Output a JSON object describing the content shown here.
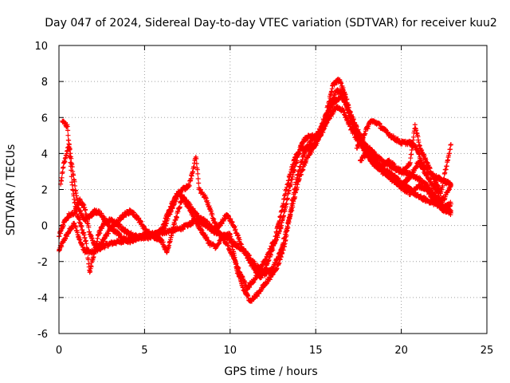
{
  "chart_data": {
    "type": "scatter",
    "title": "Day 047 of 2024, Sidereal Day-to-day VTEC variation (SDTVAR) for receiver kuu2",
    "xlabel": "GPS time / hours",
    "ylabel": "SDTVAR / TECUs",
    "xlim": [
      0,
      25
    ],
    "ylim": [
      -6,
      10
    ],
    "xticks": [
      0,
      5,
      10,
      15,
      20,
      25
    ],
    "yticks": [
      -6,
      -4,
      -2,
      0,
      2,
      4,
      6,
      8,
      10
    ],
    "grid": true,
    "marker": "+",
    "color": "#ff0000",
    "series": [
      {
        "name": "trace-1",
        "points": [
          [
            0.0,
            -1.4
          ],
          [
            0.3,
            -0.8
          ],
          [
            0.6,
            -0.3
          ],
          [
            0.9,
            0.1
          ],
          [
            1.1,
            -0.5
          ],
          [
            1.3,
            -1.0
          ],
          [
            1.5,
            -1.4
          ],
          [
            2.0,
            -1.5
          ],
          [
            2.5,
            -1.2
          ],
          [
            3.0,
            -1.0
          ],
          [
            3.5,
            -0.9
          ],
          [
            4.0,
            -0.8
          ],
          [
            4.5,
            -0.7
          ],
          [
            5.0,
            -0.6
          ],
          [
            5.5,
            -0.5
          ],
          [
            6.0,
            -0.4
          ],
          [
            6.5,
            -0.3
          ],
          [
            7.0,
            -0.2
          ],
          [
            7.5,
            0.0
          ],
          [
            8.0,
            0.3
          ],
          [
            8.5,
            0.1
          ],
          [
            9.0,
            -0.3
          ],
          [
            9.5,
            -0.5
          ],
          [
            10.0,
            -0.8
          ],
          [
            10.5,
            -1.2
          ],
          [
            11.0,
            -1.6
          ],
          [
            11.5,
            -2.2
          ],
          [
            12.0,
            -2.7
          ],
          [
            12.5,
            -2.4
          ],
          [
            13.0,
            -1.3
          ],
          [
            13.5,
            0.5
          ],
          [
            14.0,
            2.5
          ],
          [
            14.5,
            3.8
          ],
          [
            15.0,
            4.5
          ],
          [
            15.5,
            5.5
          ],
          [
            16.0,
            6.8
          ],
          [
            16.5,
            7.2
          ],
          [
            17.0,
            6.3
          ],
          [
            17.5,
            5.2
          ],
          [
            18.0,
            4.2
          ],
          [
            18.5,
            3.6
          ],
          [
            19.0,
            3.1
          ],
          [
            19.5,
            2.8
          ],
          [
            20.0,
            2.4
          ],
          [
            20.5,
            2.0
          ],
          [
            21.0,
            1.6
          ],
          [
            21.5,
            1.4
          ],
          [
            22.0,
            1.2
          ],
          [
            22.5,
            1.0
          ],
          [
            22.9,
            0.8
          ]
        ]
      },
      {
        "name": "trace-2",
        "points": [
          [
            0.2,
            5.8
          ],
          [
            0.5,
            5.5
          ],
          [
            0.6,
            4.2
          ],
          [
            0.8,
            2.0
          ],
          [
            1.0,
            0.8
          ],
          [
            1.3,
            0.0
          ],
          [
            1.6,
            -1.0
          ],
          [
            1.8,
            -2.6
          ],
          [
            2.0,
            -1.8
          ],
          [
            2.3,
            -0.5
          ],
          [
            2.6,
            0.1
          ],
          [
            3.0,
            0.3
          ],
          [
            3.5,
            0.0
          ],
          [
            4.0,
            -0.4
          ],
          [
            4.5,
            -0.6
          ],
          [
            5.0,
            -0.7
          ],
          [
            5.5,
            -0.6
          ],
          [
            6.0,
            -0.8
          ],
          [
            6.3,
            -1.5
          ],
          [
            6.8,
            0.3
          ],
          [
            7.2,
            1.5
          ],
          [
            7.6,
            1.0
          ],
          [
            8.0,
            0.2
          ],
          [
            8.4,
            -0.4
          ],
          [
            8.8,
            -1.0
          ],
          [
            9.2,
            -1.2
          ],
          [
            9.6,
            -0.6
          ],
          [
            10.0,
            -0.5
          ],
          [
            10.4,
            -2.5
          ],
          [
            10.8,
            -3.6
          ],
          [
            11.2,
            -4.2
          ],
          [
            11.6,
            -3.8
          ],
          [
            12.0,
            -3.3
          ],
          [
            12.4,
            -2.8
          ],
          [
            12.8,
            -2.2
          ],
          [
            13.2,
            -1.0
          ],
          [
            13.6,
            1.2
          ],
          [
            14.0,
            3.0
          ],
          [
            14.4,
            4.2
          ],
          [
            14.8,
            4.8
          ],
          [
            15.2,
            5.2
          ],
          [
            15.6,
            6.2
          ],
          [
            16.0,
            7.8
          ],
          [
            16.4,
            8.1
          ],
          [
            16.8,
            7.0
          ],
          [
            17.2,
            5.6
          ],
          [
            17.6,
            4.6
          ],
          [
            18.0,
            3.9
          ],
          [
            18.5,
            3.3
          ],
          [
            19.0,
            2.9
          ],
          [
            19.5,
            2.6
          ],
          [
            20.0,
            2.1
          ],
          [
            20.5,
            1.8
          ],
          [
            21.0,
            2.2
          ],
          [
            21.5,
            2.0
          ],
          [
            22.0,
            1.3
          ],
          [
            22.5,
            1.5
          ],
          [
            22.9,
            2.2
          ]
        ]
      },
      {
        "name": "trace-3",
        "points": [
          [
            0.0,
            -0.6
          ],
          [
            0.3,
            0.2
          ],
          [
            0.6,
            0.6
          ],
          [
            0.9,
            0.7
          ],
          [
            1.2,
            1.4
          ],
          [
            1.5,
            1.0
          ],
          [
            1.8,
            -0.5
          ],
          [
            2.2,
            -1.3
          ],
          [
            2.6,
            -0.8
          ],
          [
            3.0,
            -0.2
          ],
          [
            3.4,
            0.2
          ],
          [
            3.8,
            0.6
          ],
          [
            4.2,
            0.8
          ],
          [
            4.6,
            0.4
          ],
          [
            5.0,
            -0.2
          ],
          [
            5.4,
            -0.6
          ],
          [
            5.8,
            -0.4
          ],
          [
            6.2,
            0.0
          ],
          [
            6.6,
            1.0
          ],
          [
            7.0,
            1.8
          ],
          [
            7.4,
            1.4
          ],
          [
            7.8,
            0.9
          ],
          [
            8.2,
            0.4
          ],
          [
            8.6,
            0.2
          ],
          [
            9.0,
            -0.2
          ],
          [
            9.4,
            0.0
          ],
          [
            9.8,
            0.6
          ],
          [
            10.2,
            0.0
          ],
          [
            10.6,
            -1.0
          ],
          [
            11.0,
            -1.8
          ],
          [
            11.4,
            -2.4
          ],
          [
            11.8,
            -2.9
          ],
          [
            12.2,
            -2.0
          ],
          [
            12.6,
            -1.0
          ],
          [
            13.0,
            0.0
          ],
          [
            13.4,
            1.8
          ],
          [
            13.8,
            3.3
          ],
          [
            14.2,
            4.6
          ],
          [
            14.6,
            5.0
          ],
          [
            15.0,
            4.9
          ],
          [
            15.4,
            5.3
          ],
          [
            15.8,
            6.0
          ],
          [
            16.2,
            6.6
          ],
          [
            16.6,
            6.4
          ],
          [
            17.0,
            5.5
          ],
          [
            17.4,
            4.8
          ],
          [
            17.8,
            4.5
          ],
          [
            18.2,
            4.2
          ],
          [
            18.6,
            3.8
          ],
          [
            19.0,
            3.5
          ],
          [
            19.5,
            3.2
          ],
          [
            20.0,
            3.0
          ],
          [
            20.5,
            2.9
          ],
          [
            21.0,
            2.6
          ],
          [
            21.5,
            2.2
          ],
          [
            22.0,
            1.6
          ],
          [
            22.4,
            0.9
          ],
          [
            22.9,
            0.7
          ]
        ]
      },
      {
        "name": "trace-4",
        "points": [
          [
            0.1,
            2.3
          ],
          [
            0.3,
            3.5
          ],
          [
            0.6,
            4.5
          ],
          [
            0.8,
            3.0
          ],
          [
            1.0,
            1.8
          ],
          [
            1.2,
            0.8
          ],
          [
            1.5,
            0.3
          ],
          [
            1.8,
            0.5
          ],
          [
            2.1,
            0.8
          ],
          [
            2.4,
            0.7
          ],
          [
            2.7,
            0.3
          ],
          [
            3.1,
            -0.2
          ],
          [
            3.5,
            -0.5
          ],
          [
            4.0,
            -0.9
          ],
          [
            4.4,
            -0.8
          ],
          [
            4.8,
            -0.6
          ],
          [
            5.2,
            -0.4
          ],
          [
            5.6,
            -0.5
          ],
          [
            6.0,
            -0.3
          ],
          [
            6.4,
            0.8
          ],
          [
            6.8,
            1.6
          ],
          [
            7.2,
            2.0
          ],
          [
            7.6,
            2.2
          ],
          [
            8.0,
            3.8
          ],
          [
            8.2,
            2.0
          ],
          [
            8.6,
            1.5
          ],
          [
            9.0,
            0.4
          ],
          [
            9.4,
            -0.5
          ],
          [
            9.8,
            -1.0
          ],
          [
            10.2,
            -1.8
          ],
          [
            10.6,
            -2.7
          ],
          [
            11.0,
            -3.5
          ],
          [
            11.4,
            -3.0
          ],
          [
            11.8,
            -2.4
          ],
          [
            12.2,
            -1.6
          ],
          [
            12.6,
            -0.8
          ],
          [
            13.0,
            0.8
          ],
          [
            13.4,
            2.5
          ],
          [
            13.8,
            3.8
          ],
          [
            14.2,
            4.3
          ],
          [
            14.6,
            4.2
          ],
          [
            15.0,
            4.6
          ],
          [
            15.4,
            5.2
          ],
          [
            15.8,
            6.6
          ],
          [
            16.2,
            7.5
          ],
          [
            16.6,
            7.3
          ],
          [
            17.0,
            6.0
          ],
          [
            17.4,
            5.0
          ],
          [
            17.8,
            4.6
          ],
          [
            18.2,
            4.0
          ],
          [
            18.6,
            3.4
          ],
          [
            19.0,
            3.0
          ],
          [
            19.5,
            2.5
          ],
          [
            20.0,
            2.2
          ],
          [
            20.5,
            2.7
          ],
          [
            21.0,
            3.5
          ],
          [
            21.5,
            2.8
          ],
          [
            22.0,
            2.0
          ],
          [
            22.5,
            1.0
          ],
          [
            22.9,
            1.2
          ]
        ]
      },
      {
        "name": "trace-5",
        "points": [
          [
            17.4,
            4.3
          ],
          [
            17.8,
            5.0
          ],
          [
            18.2,
            5.8
          ],
          [
            18.6,
            5.7
          ],
          [
            19.0,
            5.3
          ],
          [
            19.5,
            4.9
          ],
          [
            20.0,
            4.6
          ],
          [
            20.5,
            4.6
          ],
          [
            20.9,
            4.3
          ],
          [
            21.2,
            3.5
          ],
          [
            21.6,
            3.0
          ],
          [
            22.0,
            2.7
          ],
          [
            22.4,
            2.5
          ],
          [
            22.9,
            2.3
          ]
        ]
      },
      {
        "name": "trace-6",
        "points": [
          [
            17.6,
            3.6
          ],
          [
            18.0,
            4.0
          ],
          [
            18.4,
            3.6
          ],
          [
            18.8,
            3.2
          ],
          [
            19.2,
            3.6
          ],
          [
            19.6,
            3.3
          ],
          [
            20.0,
            3.0
          ],
          [
            20.5,
            3.4
          ],
          [
            20.8,
            5.6
          ],
          [
            21.1,
            4.3
          ],
          [
            21.5,
            3.5
          ],
          [
            21.9,
            2.6
          ],
          [
            22.3,
            1.8
          ],
          [
            22.7,
            3.6
          ],
          [
            22.9,
            4.5
          ]
        ]
      }
    ]
  }
}
